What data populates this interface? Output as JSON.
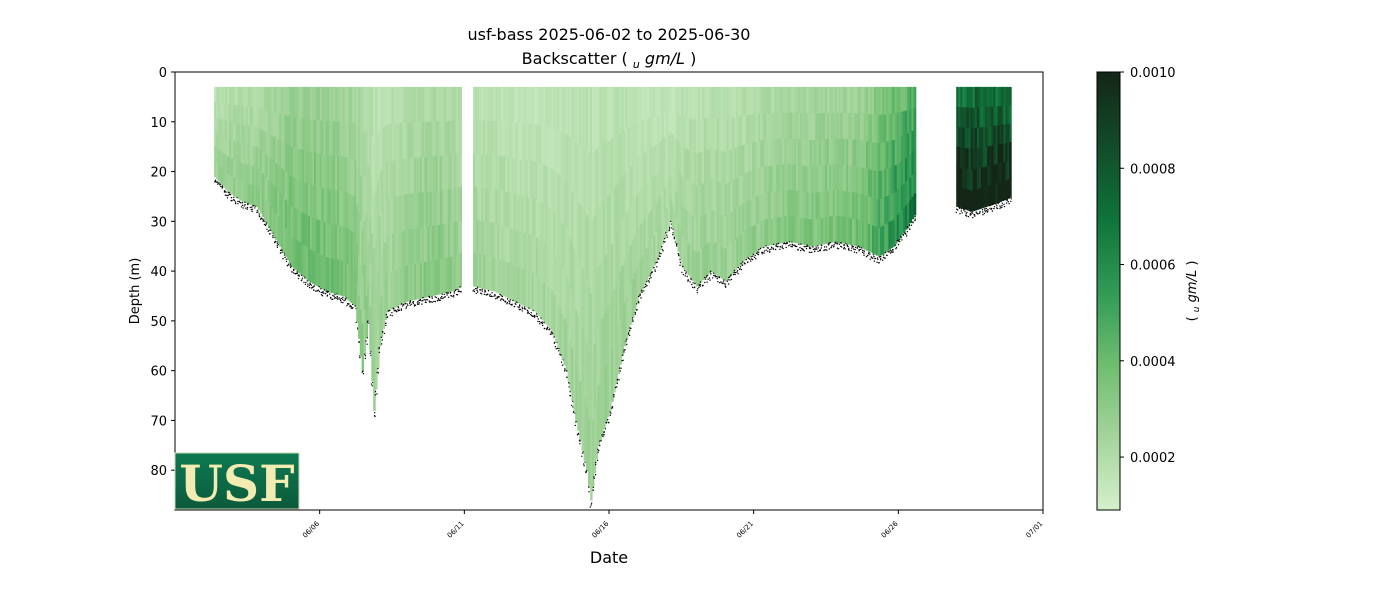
{
  "chart_data": {
    "type": "scatter",
    "title": "usf-bass 2025-06-02 to 2025-06-30",
    "subtitle_prefix": "Backscatter (",
    "subtitle_unit_sub": "u",
    "subtitle_unit": "gm/L",
    "subtitle_suffix": ")",
    "xlabel": "Date",
    "ylabel": "Depth (m)",
    "x_range": [
      "2025-06-01",
      "2025-07-01"
    ],
    "x_ticks": [
      {
        "date": "2025-06-06",
        "label": "06/06"
      },
      {
        "date": "2025-06-11",
        "label": "06/11"
      },
      {
        "date": "2025-06-16",
        "label": "06/16"
      },
      {
        "date": "2025-06-21",
        "label": "06/21"
      },
      {
        "date": "2025-06-26",
        "label": "06/26"
      },
      {
        "date": "2025-07-01",
        "label": "07/01"
      }
    ],
    "ylim": [
      88,
      0
    ],
    "y_ticks": [
      0,
      10,
      20,
      30,
      40,
      50,
      60,
      70,
      80
    ],
    "y_inverted": true,
    "grid": false,
    "colormap": "Greens",
    "colorbar": {
      "label_prefix": "(",
      "label_sub": "u",
      "label_unit": "gm/L",
      "label_suffix": ")",
      "range": [
        9e-05,
        0.001
      ],
      "ticks": [
        "0.0002",
        "0.0004",
        "0.0006",
        "0.0008",
        "0.0010"
      ],
      "tick_values": [
        0.0002,
        0.0004,
        0.0006,
        0.0008,
        0.001
      ],
      "colors": [
        "#d4f0cc",
        "#a4d49b",
        "#6ebd6e",
        "#2f9a55",
        "#0e7339",
        "#124b29",
        "#142617"
      ]
    },
    "series": [
      {
        "segment": 1,
        "profiles": [
          {
            "date": "2025-06-02.35",
            "bottom": 21,
            "backscatter": 0.00022
          },
          {
            "date": "2025-06-02.8",
            "bottom": 24,
            "backscatter": 0.00024
          },
          {
            "date": "2025-06-03.3",
            "bottom": 26,
            "backscatter": 0.00025
          },
          {
            "date": "2025-06-03.8",
            "bottom": 27,
            "backscatter": 0.00026
          },
          {
            "date": "2025-06-04.4",
            "bottom": 33,
            "backscatter": 0.0003
          },
          {
            "date": "2025-06-05.0",
            "bottom": 39,
            "backscatter": 0.00034
          },
          {
            "date": "2025-06-05.6",
            "bottom": 42,
            "backscatter": 0.00035
          },
          {
            "date": "2025-06-06.2",
            "bottom": 44,
            "backscatter": 0.00034
          },
          {
            "date": "2025-06-06.8",
            "bottom": 45,
            "backscatter": 0.00032
          },
          {
            "date": "2025-06-07.2",
            "bottom": 47,
            "backscatter": 0.0003
          },
          {
            "date": "2025-06-07.45",
            "bottom": 60,
            "backscatter": 0.00026
          },
          {
            "date": "2025-06-07.65",
            "bottom": 50,
            "backscatter": 0.00024
          },
          {
            "date": "2025-06-07.85",
            "bottom": 68,
            "backscatter": 0.00022
          },
          {
            "date": "2025-06-08.05",
            "bottom": 55,
            "backscatter": 0.00022
          },
          {
            "date": "2025-06-08.3",
            "bottom": 48,
            "backscatter": 0.00022
          },
          {
            "date": "2025-06-09.0",
            "bottom": 46,
            "backscatter": 0.00025
          },
          {
            "date": "2025-06-09.8",
            "bottom": 45,
            "backscatter": 0.00028
          },
          {
            "date": "2025-06-10.5",
            "bottom": 44,
            "backscatter": 0.00027
          },
          {
            "date": "2025-06-10.9",
            "bottom": 43,
            "backscatter": 0.00024
          }
        ]
      },
      {
        "segment": 2,
        "profiles": [
          {
            "date": "2025-06-11.3",
            "bottom": 43,
            "backscatter": 0.00022
          },
          {
            "date": "2025-06-12.0",
            "bottom": 44,
            "backscatter": 0.00021
          },
          {
            "date": "2025-06-12.7",
            "bottom": 46,
            "backscatter": 0.0002
          },
          {
            "date": "2025-06-13.4",
            "bottom": 48,
            "backscatter": 0.0002
          },
          {
            "date": "2025-06-14.0",
            "bottom": 52,
            "backscatter": 0.0002
          },
          {
            "date": "2025-06-14.5",
            "bottom": 60,
            "backscatter": 0.00021
          },
          {
            "date": "2025-06-14.9",
            "bottom": 72,
            "backscatter": 0.00021
          },
          {
            "date": "2025-06-15.2",
            "bottom": 80,
            "backscatter": 0.00022
          },
          {
            "date": "2025-06-15.35",
            "bottom": 86,
            "backscatter": 0.00022
          },
          {
            "date": "2025-06-15.6",
            "bottom": 75,
            "backscatter": 0.00022
          },
          {
            "date": "2025-06-16.0",
            "bottom": 68,
            "backscatter": 0.00022
          },
          {
            "date": "2025-06-16.5",
            "bottom": 55,
            "backscatter": 0.00022
          },
          {
            "date": "2025-06-17.0",
            "bottom": 45,
            "backscatter": 0.00021
          },
          {
            "date": "2025-06-17.6",
            "bottom": 38,
            "backscatter": 0.0002
          },
          {
            "date": "2025-06-18.1",
            "bottom": 30,
            "backscatter": 0.00019
          },
          {
            "date": "2025-06-18.5",
            "bottom": 39,
            "backscatter": 0.00022
          },
          {
            "date": "2025-06-19.0",
            "bottom": 43,
            "backscatter": 0.00023
          },
          {
            "date": "2025-06-19.5",
            "bottom": 40,
            "backscatter": 0.00023
          },
          {
            "date": "2025-06-20.0",
            "bottom": 42,
            "backscatter": 0.00023
          },
          {
            "date": "2025-06-20.6",
            "bottom": 38,
            "backscatter": 0.00024
          },
          {
            "date": "2025-06-21.3",
            "bottom": 35,
            "backscatter": 0.00026
          },
          {
            "date": "2025-06-22.2",
            "bottom": 34,
            "backscatter": 0.00028
          },
          {
            "date": "2025-06-23.0",
            "bottom": 35,
            "backscatter": 0.0003
          },
          {
            "date": "2025-06-23.8",
            "bottom": 34,
            "backscatter": 0.00031
          },
          {
            "date": "2025-06-24.6",
            "bottom": 35,
            "backscatter": 0.00033
          },
          {
            "date": "2025-06-25.3",
            "bottom": 37,
            "backscatter": 0.00042
          },
          {
            "date": "2025-06-25.8",
            "bottom": 35,
            "backscatter": 0.0005
          },
          {
            "date": "2025-06-26.3",
            "bottom": 31,
            "backscatter": 0.00055
          },
          {
            "date": "2025-06-26.6",
            "bottom": 28,
            "backscatter": 0.0006
          }
        ]
      },
      {
        "segment": 3,
        "profiles": [
          {
            "date": "2025-06-28.0",
            "bottom": 27,
            "backscatter": 0.0009
          },
          {
            "date": "2025-06-28.5",
            "bottom": 28,
            "backscatter": 0.00092
          },
          {
            "date": "2025-06-29.0",
            "bottom": 27,
            "backscatter": 0.00092
          },
          {
            "date": "2025-06-29.5",
            "bottom": 26,
            "backscatter": 0.0009
          },
          {
            "date": "2025-06-29.9",
            "bottom": 25,
            "backscatter": 0.00088
          }
        ]
      }
    ]
  },
  "logo": {
    "text": "USF",
    "colors": [
      "#0e7a52",
      "#0b5a3b"
    ],
    "text_color": "#f3ecb2"
  }
}
